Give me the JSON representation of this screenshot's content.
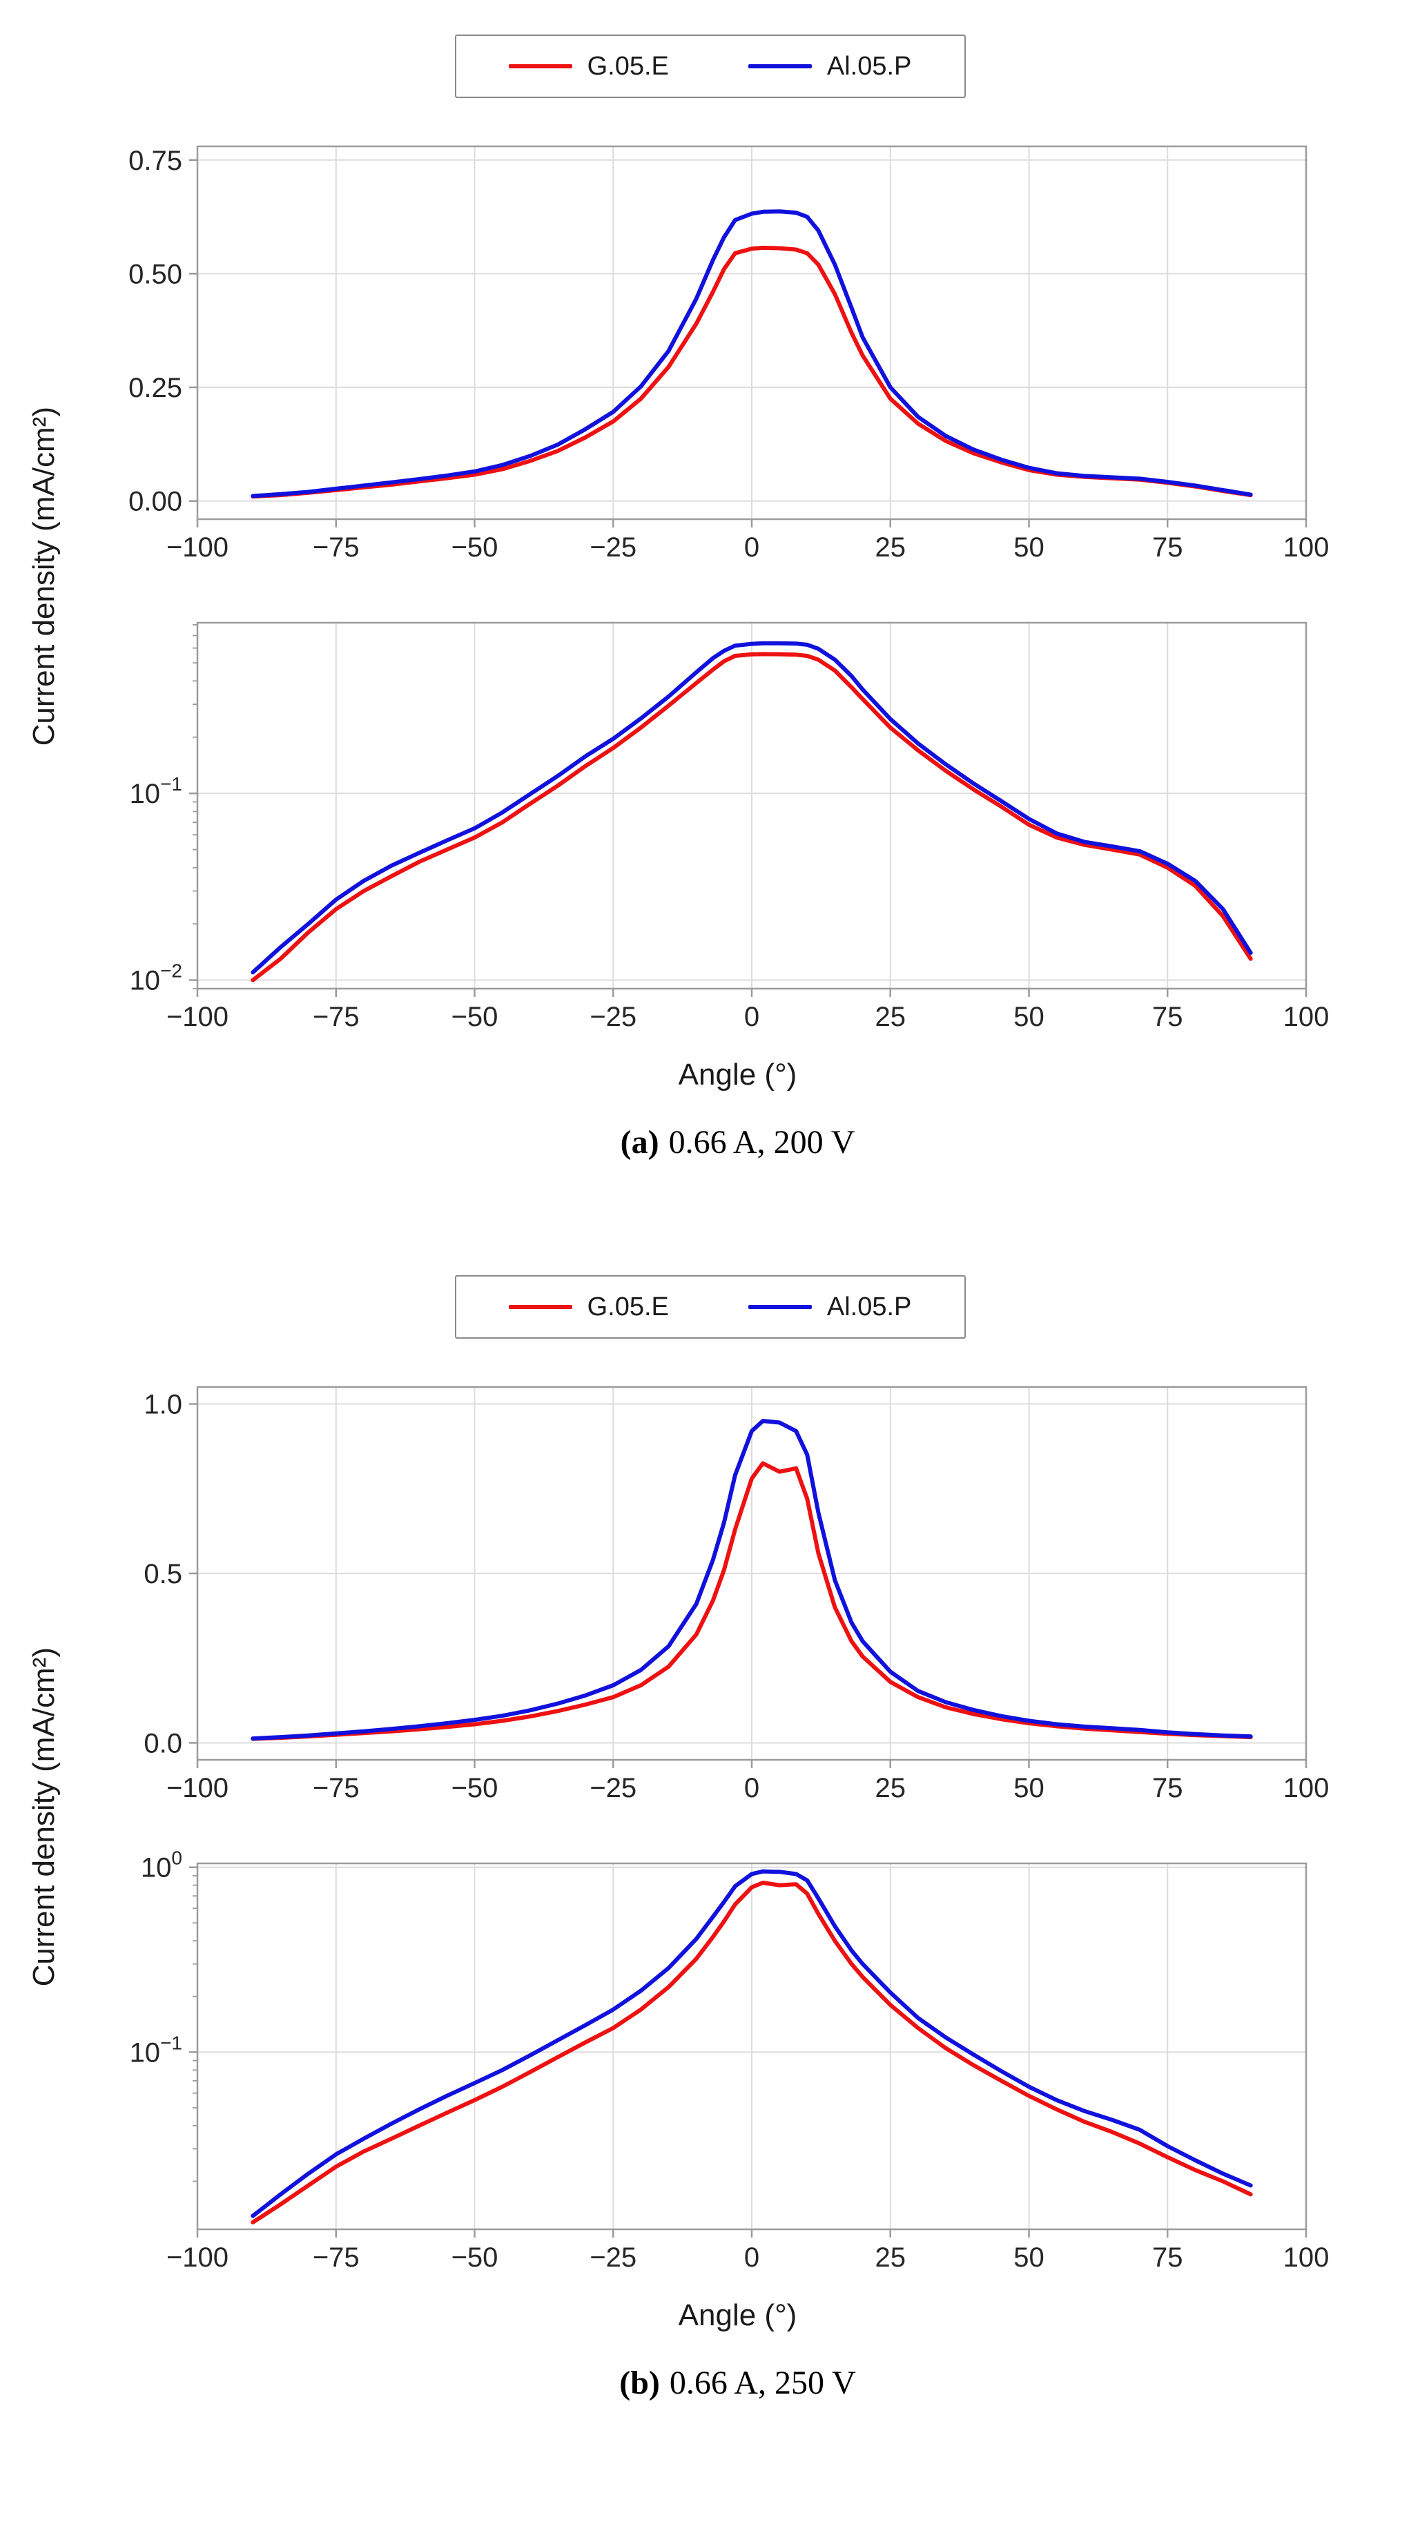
{
  "chart_data": [
    {
      "id": "a",
      "type": "line",
      "caption_label": "(a)",
      "caption_text": "0.66 A, 200 V",
      "xlabel": "Angle (°)",
      "ylabel": "Current density (mA/cm²)",
      "legend_position": "top-center",
      "grid": true,
      "xlim": [
        -100,
        100
      ],
      "xticks": [
        {
          "v": -100,
          "label": "−100"
        },
        {
          "v": -75,
          "label": "−75"
        },
        {
          "v": -50,
          "label": "−50"
        },
        {
          "v": -25,
          "label": "−25"
        },
        {
          "v": 0,
          "label": "0"
        },
        {
          "v": 25,
          "label": "25"
        },
        {
          "v": 50,
          "label": "50"
        },
        {
          "v": 75,
          "label": "75"
        },
        {
          "v": 100,
          "label": "100"
        }
      ],
      "x": [
        -90,
        -85,
        -80,
        -75,
        -70,
        -65,
        -60,
        -55,
        -50,
        -45,
        -40,
        -35,
        -30,
        -25,
        -20,
        -15,
        -10,
        -7,
        -5,
        -3,
        0,
        2,
        5,
        8,
        10,
        12,
        15,
        18,
        20,
        25,
        30,
        35,
        40,
        45,
        50,
        55,
        60,
        65,
        70,
        75,
        80,
        85,
        90
      ],
      "series": [
        {
          "name": "G.05.E",
          "color": "#ee1111",
          "values": [
            0.01,
            0.013,
            0.018,
            0.024,
            0.03,
            0.036,
            0.043,
            0.05,
            0.058,
            0.07,
            0.088,
            0.11,
            0.14,
            0.175,
            0.225,
            0.295,
            0.39,
            0.46,
            0.51,
            0.545,
            0.555,
            0.557,
            0.556,
            0.553,
            0.545,
            0.52,
            0.455,
            0.37,
            0.32,
            0.225,
            0.17,
            0.132,
            0.105,
            0.085,
            0.068,
            0.058,
            0.053,
            0.05,
            0.047,
            0.04,
            0.032,
            0.022,
            0.013
          ]
        },
        {
          "name": "Al.05.P",
          "color": "#1111dd",
          "values": [
            0.011,
            0.015,
            0.02,
            0.027,
            0.034,
            0.041,
            0.048,
            0.056,
            0.065,
            0.079,
            0.099,
            0.124,
            0.158,
            0.196,
            0.252,
            0.33,
            0.445,
            0.53,
            0.58,
            0.618,
            0.632,
            0.636,
            0.637,
            0.634,
            0.625,
            0.595,
            0.52,
            0.425,
            0.36,
            0.25,
            0.185,
            0.143,
            0.113,
            0.091,
            0.073,
            0.061,
            0.055,
            0.052,
            0.049,
            0.042,
            0.034,
            0.024,
            0.014
          ]
        }
      ],
      "subplots": [
        {
          "scale": "linear",
          "ylim": [
            -0.04,
            0.78
          ],
          "yticks": [
            {
              "v": 0.0,
              "label": "0.00"
            },
            {
              "v": 0.25,
              "label": "0.25"
            },
            {
              "v": 0.5,
              "label": "0.50"
            },
            {
              "v": 0.75,
              "label": "0.75"
            }
          ]
        },
        {
          "scale": "log",
          "ylim": [
            0.009,
            0.82
          ],
          "yticks": [
            {
              "v": 0.1,
              "sup": "−1"
            },
            {
              "v": 0.01,
              "sup": "−2"
            }
          ]
        }
      ]
    },
    {
      "id": "b",
      "type": "line",
      "caption_label": "(b)",
      "caption_text": "0.66 A, 250 V",
      "xlabel": "Angle (°)",
      "ylabel": "Current density (mA/cm²)",
      "legend_position": "top-center",
      "grid": true,
      "xlim": [
        -100,
        100
      ],
      "xticks": [
        {
          "v": -100,
          "label": "−100"
        },
        {
          "v": -75,
          "label": "−75"
        },
        {
          "v": -50,
          "label": "−50"
        },
        {
          "v": -25,
          "label": "−25"
        },
        {
          "v": 0,
          "label": "0"
        },
        {
          "v": 25,
          "label": "25"
        },
        {
          "v": 50,
          "label": "50"
        },
        {
          "v": 75,
          "label": "75"
        },
        {
          "v": 100,
          "label": "100"
        }
      ],
      "x": [
        -90,
        -85,
        -80,
        -75,
        -70,
        -65,
        -60,
        -55,
        -50,
        -45,
        -40,
        -35,
        -30,
        -25,
        -20,
        -15,
        -10,
        -7,
        -5,
        -3,
        0,
        2,
        5,
        8,
        10,
        12,
        15,
        18,
        20,
        25,
        30,
        35,
        40,
        45,
        50,
        55,
        60,
        65,
        70,
        75,
        80,
        85,
        90
      ],
      "series": [
        {
          "name": "G.05.E",
          "color": "#ee1111",
          "values": [
            0.012,
            0.015,
            0.019,
            0.024,
            0.029,
            0.034,
            0.04,
            0.047,
            0.055,
            0.065,
            0.078,
            0.094,
            0.113,
            0.135,
            0.17,
            0.225,
            0.32,
            0.42,
            0.51,
            0.63,
            0.78,
            0.825,
            0.8,
            0.81,
            0.72,
            0.56,
            0.4,
            0.3,
            0.255,
            0.18,
            0.135,
            0.105,
            0.085,
            0.07,
            0.058,
            0.049,
            0.042,
            0.037,
            0.032,
            0.027,
            0.023,
            0.02,
            0.017
          ]
        },
        {
          "name": "Al.05.P",
          "color": "#1111dd",
          "values": [
            0.013,
            0.017,
            0.022,
            0.028,
            0.034,
            0.041,
            0.049,
            0.058,
            0.068,
            0.08,
            0.096,
            0.116,
            0.14,
            0.17,
            0.215,
            0.285,
            0.41,
            0.54,
            0.65,
            0.79,
            0.92,
            0.95,
            0.945,
            0.92,
            0.85,
            0.68,
            0.48,
            0.355,
            0.3,
            0.21,
            0.153,
            0.12,
            0.097,
            0.079,
            0.065,
            0.055,
            0.048,
            0.043,
            0.038,
            0.031,
            0.026,
            0.022,
            0.019
          ]
        }
      ],
      "subplots": [
        {
          "scale": "linear",
          "ylim": [
            -0.05,
            1.05
          ],
          "yticks": [
            {
              "v": 0.0,
              "label": "0.0"
            },
            {
              "v": 0.5,
              "label": "0.5"
            },
            {
              "v": 1.0,
              "label": "1.0"
            }
          ]
        },
        {
          "scale": "log",
          "ylim": [
            0.011,
            1.05
          ],
          "yticks": [
            {
              "v": 1,
              "sup": "0"
            },
            {
              "v": 0.1,
              "sup": "−1"
            }
          ]
        }
      ]
    }
  ]
}
